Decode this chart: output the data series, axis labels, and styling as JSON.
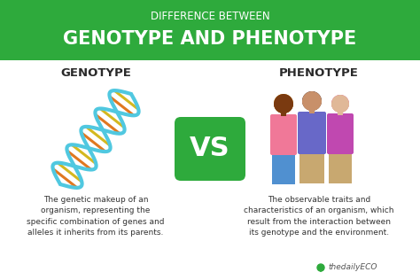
{
  "bg_color": "#ffffff",
  "header_bg": "#2eaa3c",
  "header_text1": "DIFFERENCE BETWEEN",
  "header_text2": "GENOTYPE AND PHENOTYPE",
  "left_title": "GENOTYPE",
  "right_title": "PHENOTYPE",
  "vs_bg": "#2eaa3c",
  "vs_text": "VS",
  "left_desc": "The genetic makeup of an\norganism, representing the\nspecific combination of genes and\nalleles it inherits from its parents.",
  "right_desc": "The observable traits and\ncharacteristics of an organism, which\nresult from the interaction between\nits genotype and the environment.",
  "watermark": "thedailyECO",
  "header_text1_color": "#ffffff",
  "header_text2_color": "#ffffff",
  "title_color": "#2a2a2a",
  "desc_color": "#333333",
  "vs_text_color": "#ffffff",
  "dna_strand_color": "#50c8e0",
  "dna_rung_colors": [
    "#c84820",
    "#e07820",
    "#d4b820",
    "#c84820",
    "#e07820",
    "#d4b820",
    "#c84820",
    "#e07820",
    "#d4b820",
    "#c84820",
    "#e07820",
    "#d4b820",
    "#c84820",
    "#e07820",
    "#d4b820",
    "#c84820"
  ],
  "skin_dark": "#7a3a10",
  "skin_mid": "#c8906a",
  "skin_light": "#e0b898",
  "shirt1": "#f07898",
  "shirt2": "#6868c8",
  "shirt3": "#c048b0",
  "hair_orange": "#e8a020",
  "hair_dark": "#1a1020",
  "hair_pink": "#e04888",
  "pants1": "#5090d0",
  "pants2": "#c8a870",
  "pants3": "#c8a870"
}
